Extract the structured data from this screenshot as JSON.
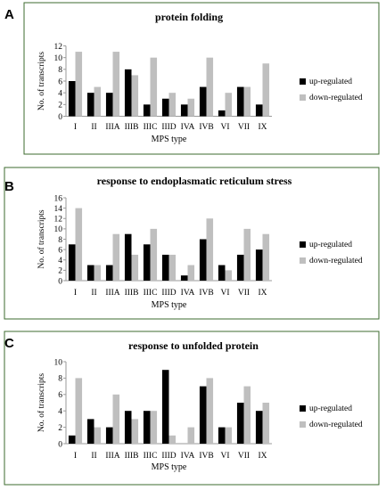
{
  "chart_data": [
    {
      "panel": "A",
      "type": "bar",
      "title": "protein folding",
      "xlabel": "MPS type",
      "ylabel": "No. of transcripts",
      "ylim": [
        0,
        12
      ],
      "yticks": [
        0,
        2,
        4,
        6,
        8,
        10,
        12
      ],
      "categories": [
        "I",
        "II",
        "IIIA",
        "IIIB",
        "IIIC",
        "IIID",
        "IVA",
        "IVB",
        "VI",
        "VII",
        "IX"
      ],
      "series": [
        {
          "name": "up-regulated",
          "color": "#000000",
          "values": [
            6,
            4,
            4,
            8,
            2,
            3,
            2,
            5,
            1,
            5,
            2
          ]
        },
        {
          "name": "down-regulated",
          "color": "#bfbfbf",
          "values": [
            11,
            5,
            11,
            7,
            10,
            4,
            3,
            10,
            4,
            5,
            9
          ]
        }
      ],
      "legend": "right"
    },
    {
      "panel": "B",
      "type": "bar",
      "title": "response to endoplasmatic reticulum stress",
      "xlabel": "MPS type",
      "ylabel": "No. of transcripts",
      "ylim": [
        0,
        16
      ],
      "yticks": [
        0,
        2,
        4,
        6,
        8,
        10,
        12,
        14,
        16
      ],
      "categories": [
        "I",
        "II",
        "IIIA",
        "IIIB",
        "IIIC",
        "IIID",
        "IVA",
        "IVB",
        "VI",
        "VII",
        "IX"
      ],
      "series": [
        {
          "name": "up-regulated",
          "color": "#000000",
          "values": [
            7,
            3,
            3,
            9,
            7,
            5,
            1,
            8,
            3,
            5,
            6
          ]
        },
        {
          "name": "down-regulated",
          "color": "#bfbfbf",
          "values": [
            14,
            3,
            9,
            5,
            10,
            5,
            3,
            12,
            2,
            10,
            9
          ]
        }
      ],
      "legend": "right"
    },
    {
      "panel": "C",
      "type": "bar",
      "title": "response to unfolded protein",
      "xlabel": "MPS type",
      "ylabel": "No. of transcripts",
      "ylim": [
        0,
        10
      ],
      "yticks": [
        0,
        2,
        4,
        6,
        8,
        10
      ],
      "categories": [
        "I",
        "II",
        "IIIA",
        "IIIB",
        "IIIC",
        "IIID",
        "IVA",
        "IVB",
        "VI",
        "VII",
        "IX"
      ],
      "series": [
        {
          "name": "up-regulated",
          "color": "#000000",
          "values": [
            1,
            3,
            2,
            4,
            4,
            9,
            0,
            7,
            2,
            5,
            4
          ]
        },
        {
          "name": "down-regulated",
          "color": "#bfbfbf",
          "values": [
            8,
            2,
            6,
            3,
            4,
            1,
            2,
            8,
            2,
            7,
            5
          ]
        }
      ],
      "legend": "right"
    }
  ]
}
